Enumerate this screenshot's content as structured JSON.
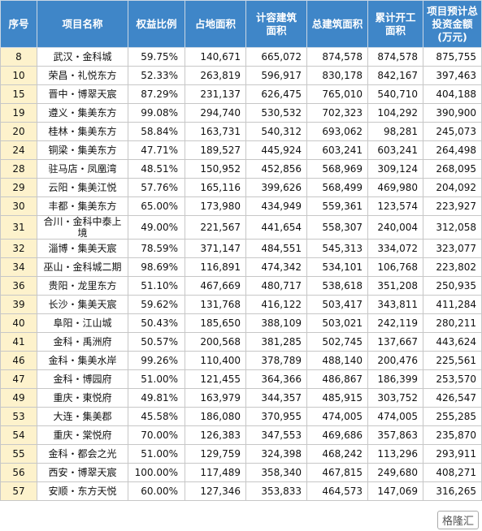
{
  "table": {
    "header": [
      [
        "序号"
      ],
      [
        "项目名称"
      ],
      [
        "权益比例"
      ],
      [
        "占地面积"
      ],
      [
        "计容建筑",
        "面积"
      ],
      [
        "总建筑面积"
      ],
      [
        "累计开工",
        "面积"
      ],
      [
        "项目预计总",
        "投资金额",
        "(万元)"
      ]
    ],
    "rows": [
      [
        "8",
        "武汉・金科城",
        "59.75%",
        "140,671",
        "665,072",
        "874,578",
        "874,578",
        "875,755"
      ],
      [
        "10",
        "荣昌・礼悦东方",
        "52.33%",
        "263,819",
        "596,917",
        "830,178",
        "842,167",
        "397,463"
      ],
      [
        "15",
        "晋中・博翠天宸",
        "87.29%",
        "231,137",
        "626,475",
        "765,010",
        "540,710",
        "404,188"
      ],
      [
        "19",
        "遵义・集美东方",
        "99.08%",
        "294,740",
        "530,532",
        "702,323",
        "104,292",
        "390,900"
      ],
      [
        "20",
        "桂林・集美东方",
        "58.84%",
        "163,731",
        "540,312",
        "693,062",
        "98,281",
        "245,073"
      ],
      [
        "24",
        "铜梁・集美东方",
        "47.71%",
        "189,527",
        "445,924",
        "603,241",
        "603,241",
        "264,498"
      ],
      [
        "28",
        "驻马店・凤凰湾",
        "48.51%",
        "150,952",
        "452,856",
        "568,969",
        "309,124",
        "268,095"
      ],
      [
        "29",
        "云阳・集美江悦",
        "57.76%",
        "165,116",
        "399,626",
        "568,499",
        "469,980",
        "204,092"
      ],
      [
        "30",
        "丰都・集美东方",
        "65.00%",
        "173,980",
        "434,949",
        "559,361",
        "123,574",
        "223,927"
      ],
      [
        "31",
        "合川・金科中泰上境",
        "49.00%",
        "221,567",
        "441,654",
        "558,307",
        "240,004",
        "312,058"
      ],
      [
        "32",
        "淄博・集美天宸",
        "78.59%",
        "371,147",
        "484,551",
        "545,313",
        "334,072",
        "323,077"
      ],
      [
        "34",
        "巫山・金科城二期",
        "98.69%",
        "116,891",
        "474,342",
        "534,101",
        "106,768",
        "223,802"
      ],
      [
        "36",
        "贵阳・龙里东方",
        "51.10%",
        "467,669",
        "480,717",
        "538,618",
        "351,208",
        "250,935"
      ],
      [
        "39",
        "长沙・集美天宸",
        "59.62%",
        "131,768",
        "416,122",
        "503,417",
        "343,811",
        "411,284"
      ],
      [
        "40",
        "阜阳・江山城",
        "50.43%",
        "185,650",
        "388,109",
        "503,021",
        "242,119",
        "280,211"
      ],
      [
        "41",
        "金科・禹洲府",
        "50.57%",
        "200,568",
        "381,285",
        "502,745",
        "137,667",
        "443,624"
      ],
      [
        "46",
        "金科・集美水岸",
        "99.26%",
        "110,400",
        "378,789",
        "488,140",
        "200,476",
        "225,561"
      ],
      [
        "47",
        "金科・博园府",
        "51.00%",
        "121,455",
        "364,366",
        "486,867",
        "186,399",
        "253,570"
      ],
      [
        "49",
        "重庆・東悦府",
        "49.81%",
        "163,979",
        "344,357",
        "485,915",
        "303,752",
        "426,547"
      ],
      [
        "53",
        "大连・集美郡",
        "45.58%",
        "186,080",
        "370,955",
        "474,005",
        "474,005",
        "255,285"
      ],
      [
        "54",
        "重庆・棠悦府",
        "70.00%",
        "126,383",
        "347,553",
        "469,686",
        "357,863",
        "235,870"
      ],
      [
        "55",
        "金科・都会之光",
        "51.00%",
        "129,759",
        "324,398",
        "468,242",
        "113,296",
        "293,911"
      ],
      [
        "56",
        "西安・博翠天宸",
        "100.00%",
        "117,489",
        "358,340",
        "467,815",
        "249,680",
        "408,271"
      ],
      [
        "57",
        "安顺・东方天悦",
        "60.00%",
        "127,346",
        "353,833",
        "464,573",
        "147,069",
        "316,265"
      ]
    ]
  },
  "watermark": "格隆汇"
}
